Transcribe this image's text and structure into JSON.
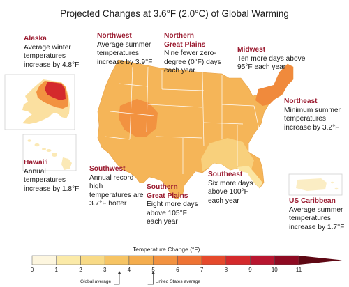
{
  "title": "Projected Changes at 3.6°F (2.0°C) of Global Warming",
  "callouts": {
    "alaska": {
      "region": "Alaska",
      "desc": "Average winter temperatures increase by 4.8°F"
    },
    "northwest": {
      "region": "Northwest",
      "desc": "Average summer temperatures increase by 3.9°F"
    },
    "northern_great_plains": {
      "region": "Northern Great Plains",
      "desc": "Nine fewer zero-degree (0°F) days each year"
    },
    "midwest": {
      "region": "Midwest",
      "desc": "Ten more days above 95°F each year"
    },
    "northeast": {
      "region": "Northeast",
      "desc": "Minimum summer temperatures increase by 3.2°F"
    },
    "hawaii": {
      "region": "Hawai'i",
      "desc": "Annual temperatures increase by 1.8°F"
    },
    "southwest": {
      "region": "Southwest",
      "desc": "Annual record high temperatures are 3.7°F hotter"
    },
    "southern_great_plains": {
      "region": "Southern Great Plains",
      "desc": "Eight more days above 105°F each year"
    },
    "southeast": {
      "region": "Southeast",
      "desc": "Six more days above 100°F each year"
    },
    "us_caribbean": {
      "region": "US Caribbean",
      "desc": "Average summer temperatures increase by 1.7°F"
    }
  },
  "legend": {
    "title": "Temperature Change (°F)",
    "ticks": [
      "0",
      "1",
      "2",
      "3",
      "4",
      "5",
      "6",
      "7",
      "8",
      "9",
      "10",
      "11"
    ],
    "colors": [
      "#fdf6df",
      "#fbeaa8",
      "#f8da86",
      "#f6c464",
      "#f4ad4e",
      "#f29240",
      "#ee7334",
      "#e54a2c",
      "#d42a2c",
      "#b81630",
      "#8e0a22",
      "#5e0814"
    ],
    "markers": [
      {
        "label": "Global average",
        "value": 3.6
      },
      {
        "label": "United States average",
        "value": 5.0
      }
    ]
  },
  "map_colors": {
    "base": "#f5b558",
    "southwest_hot": "#f29240",
    "southeast_cool": "#f8d07c",
    "florida": "#fbe5a2",
    "northeast_warm": "#f08a3c",
    "alaska_south": "#fbe0a0",
    "alaska_mid": "#f29240",
    "alaska_north": "#d42a2c",
    "hawaii": "#fbe9b6",
    "caribbean": "#fbedc4",
    "borders": "#ffffff"
  }
}
